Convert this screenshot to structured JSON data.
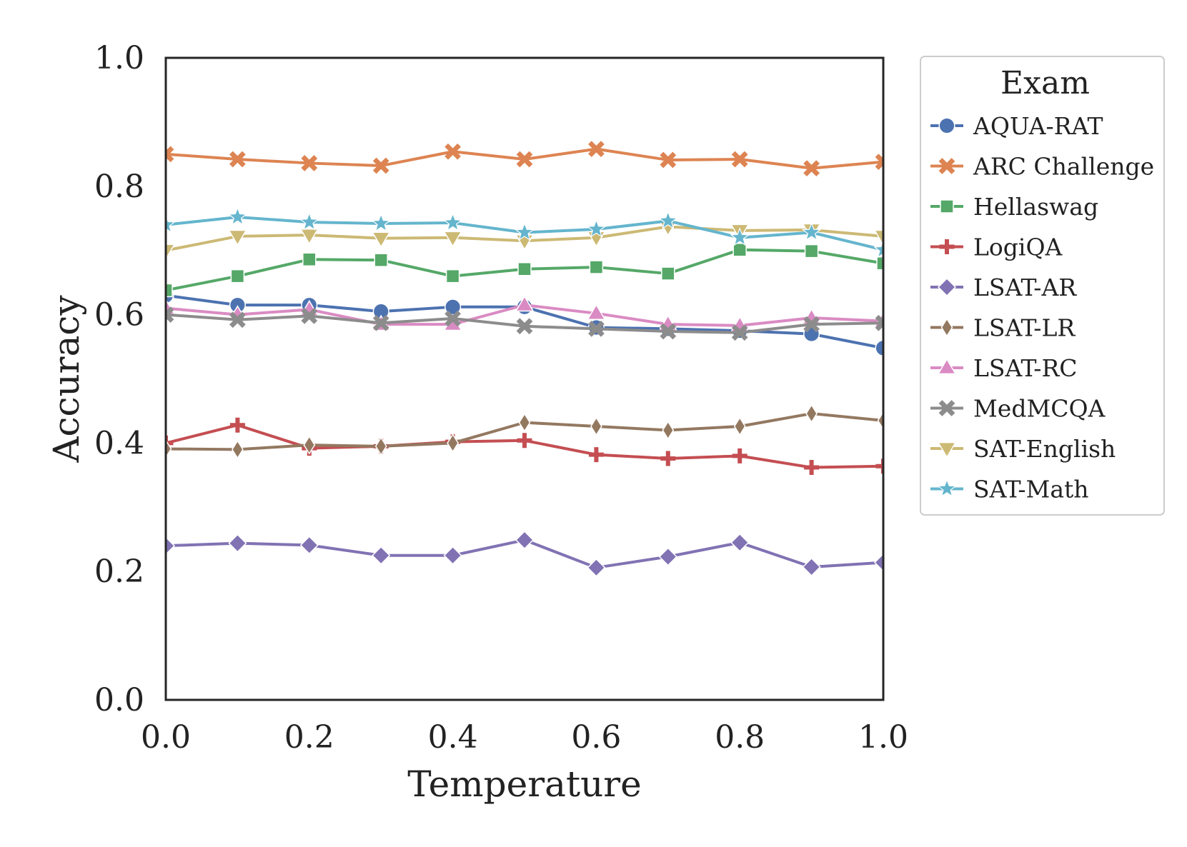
{
  "chart_data": {
    "type": "line",
    "xlabel": "Temperature",
    "ylabel": "Accuracy",
    "xlim": [
      0.0,
      1.0
    ],
    "ylim": [
      0.0,
      1.0
    ],
    "x_ticks": [
      "0.0",
      "0.2",
      "0.4",
      "0.6",
      "0.8",
      "1.0"
    ],
    "y_ticks": [
      "0.0",
      "0.2",
      "0.4",
      "0.6",
      "0.8",
      "1.0"
    ],
    "grid": false,
    "legend": {
      "title": "Exam",
      "placement": "outside-right-top"
    },
    "x": [
      0.0,
      0.1,
      0.2,
      0.3,
      0.4,
      0.5,
      0.6,
      0.7,
      0.8,
      0.9,
      1.0
    ],
    "series": [
      {
        "name": "AQUA-RAT",
        "color": "#4c72b0",
        "marker": "circle",
        "values": [
          0.63,
          0.615,
          0.615,
          0.605,
          0.612,
          0.612,
          0.58,
          0.578,
          0.575,
          0.57,
          0.548
        ]
      },
      {
        "name": "ARC Challenge",
        "color": "#dd8452",
        "marker": "x",
        "values": [
          0.85,
          0.842,
          0.836,
          0.832,
          0.854,
          0.842,
          0.858,
          0.841,
          0.842,
          0.828,
          0.838
        ]
      },
      {
        "name": "Hellaswag",
        "color": "#55a868",
        "marker": "square",
        "values": [
          0.638,
          0.66,
          0.686,
          0.685,
          0.66,
          0.671,
          0.674,
          0.664,
          0.701,
          0.699,
          0.68
        ]
      },
      {
        "name": "LogiQA",
        "color": "#c44e52",
        "marker": "plus",
        "values": [
          0.4,
          0.428,
          0.392,
          0.395,
          0.402,
          0.404,
          0.382,
          0.376,
          0.38,
          0.362,
          0.364
        ]
      },
      {
        "name": "LSAT-AR",
        "color": "#8172b3",
        "marker": "diamond",
        "values": [
          0.24,
          0.244,
          0.241,
          0.225,
          0.225,
          0.249,
          0.206,
          0.223,
          0.245,
          0.207,
          0.214
        ]
      },
      {
        "name": "LSAT-LR",
        "color": "#937860",
        "marker": "thin_diamond",
        "values": [
          0.391,
          0.39,
          0.397,
          0.395,
          0.4,
          0.432,
          0.426,
          0.42,
          0.426,
          0.446,
          0.435
        ]
      },
      {
        "name": "LSAT-RC",
        "color": "#da8bc3",
        "marker": "triangle-up",
        "values": [
          0.61,
          0.6,
          0.608,
          0.585,
          0.585,
          0.615,
          0.602,
          0.585,
          0.583,
          0.595,
          0.59
        ]
      },
      {
        "name": "MedMCQA",
        "color": "#8c8c8c",
        "marker": "x",
        "values": [
          0.6,
          0.592,
          0.598,
          0.587,
          0.594,
          0.582,
          0.578,
          0.574,
          0.572,
          0.585,
          0.587
        ]
      },
      {
        "name": "SAT-English",
        "color": "#ccb974",
        "marker": "triangle-down",
        "values": [
          0.7,
          0.722,
          0.724,
          0.719,
          0.72,
          0.715,
          0.72,
          0.737,
          0.731,
          0.732,
          0.722
        ]
      },
      {
        "name": "SAT-Math",
        "color": "#64b5cd",
        "marker": "star",
        "values": [
          0.74,
          0.752,
          0.744,
          0.742,
          0.743,
          0.728,
          0.733,
          0.746,
          0.72,
          0.728,
          0.701
        ]
      }
    ]
  }
}
